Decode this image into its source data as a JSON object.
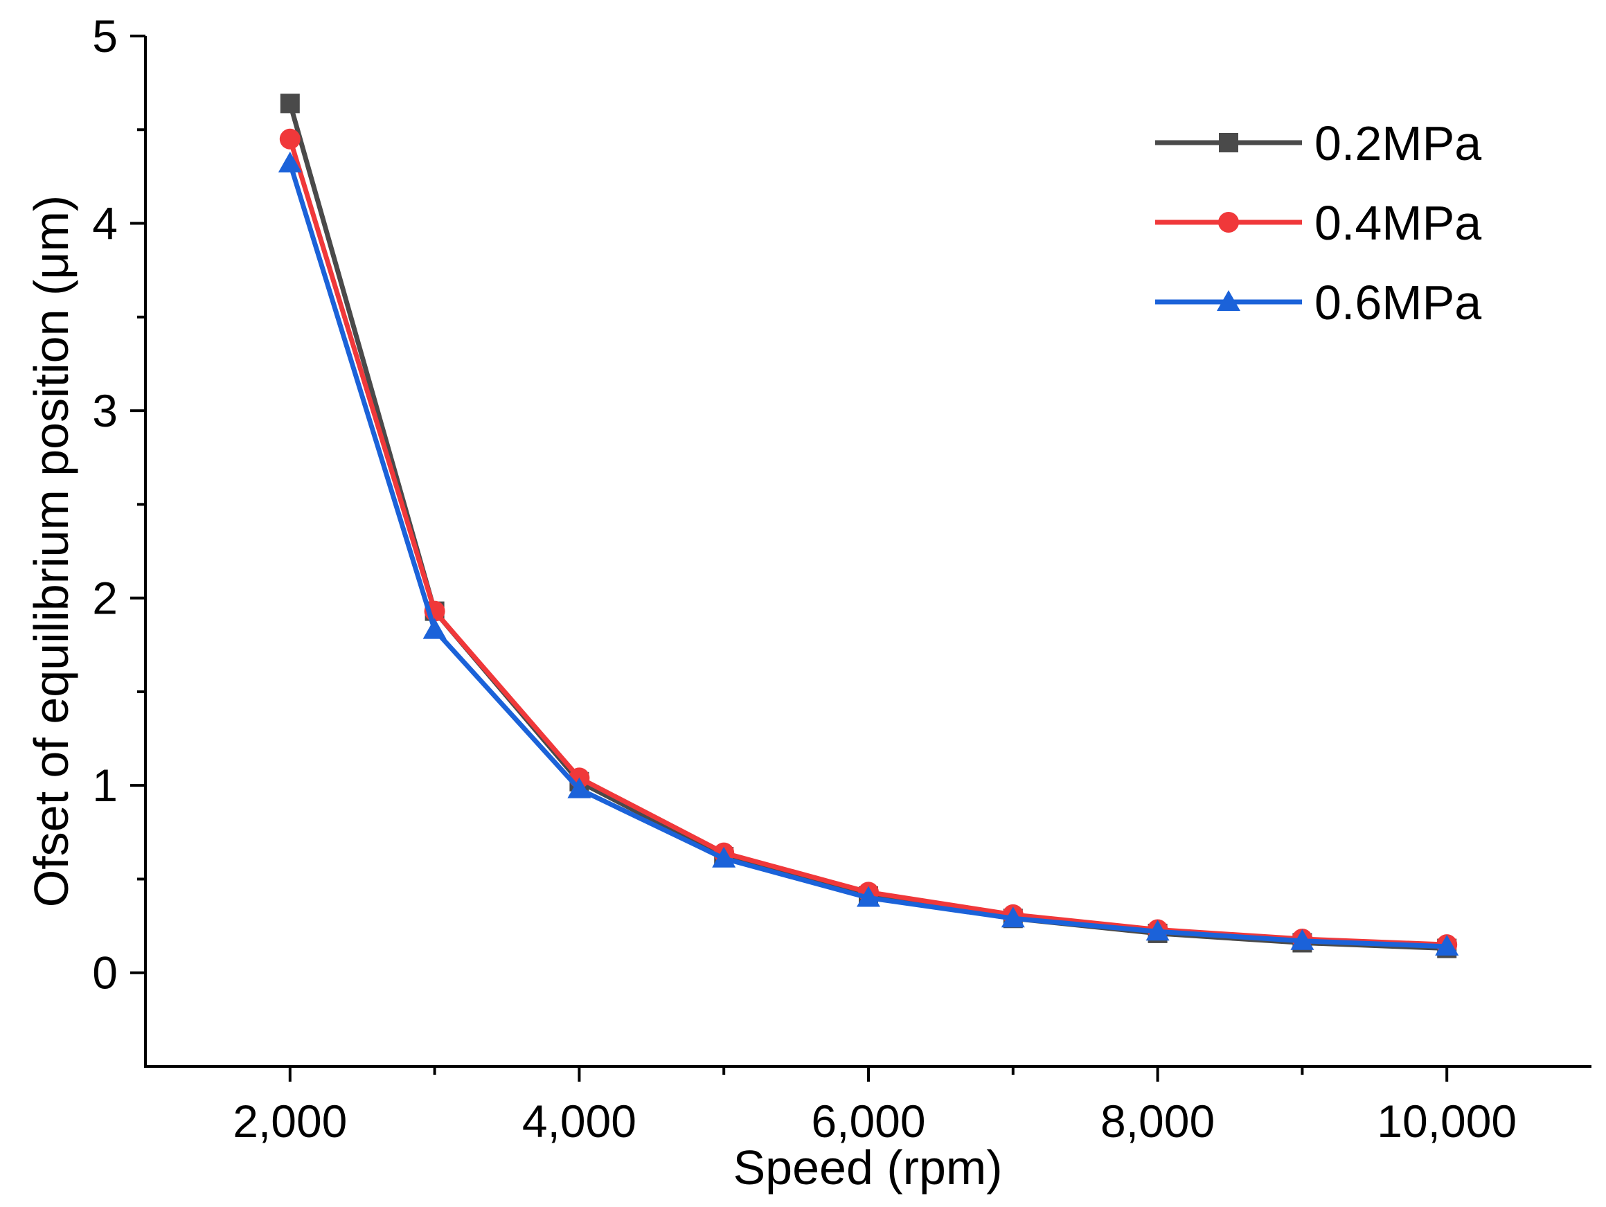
{
  "chart_data": {
    "type": "line",
    "xlabel": "Speed (rpm)",
    "ylabel": "Ofset of equilibrium position (μm)",
    "xlim": [
      1000,
      11000
    ],
    "ylim": [
      -0.5,
      5
    ],
    "x_ticks": [
      2000,
      4000,
      6000,
      8000,
      10000
    ],
    "x_tick_labels": [
      "2,000",
      "4,000",
      "6,000",
      "8,000",
      "10,000"
    ],
    "x_minor_ticks": [
      3000,
      5000,
      7000,
      9000
    ],
    "y_ticks": [
      0,
      1,
      2,
      3,
      4,
      5
    ],
    "y_tick_labels": [
      "0",
      "1",
      "2",
      "3",
      "4",
      "5"
    ],
    "y_minor_ticks": [
      0.5,
      1.5,
      2.5,
      3.5,
      4.5
    ],
    "legend_position": "top-right",
    "x": [
      2000,
      3000,
      4000,
      5000,
      6000,
      7000,
      8000,
      9000,
      10000
    ],
    "series": [
      {
        "name": "0.2MPa",
        "color": "#4a4a4a",
        "marker": "square",
        "values": [
          4.64,
          1.93,
          1.02,
          0.62,
          0.41,
          0.29,
          0.21,
          0.16,
          0.13
        ]
      },
      {
        "name": "0.4MPa",
        "color": "#f0383a",
        "marker": "circle",
        "values": [
          4.45,
          1.93,
          1.04,
          0.64,
          0.43,
          0.31,
          0.23,
          0.18,
          0.15
        ]
      },
      {
        "name": "0.6MPa",
        "color": "#1b62d9",
        "marker": "triangle",
        "values": [
          4.32,
          1.83,
          0.98,
          0.61,
          0.4,
          0.29,
          0.22,
          0.17,
          0.14
        ]
      }
    ]
  }
}
